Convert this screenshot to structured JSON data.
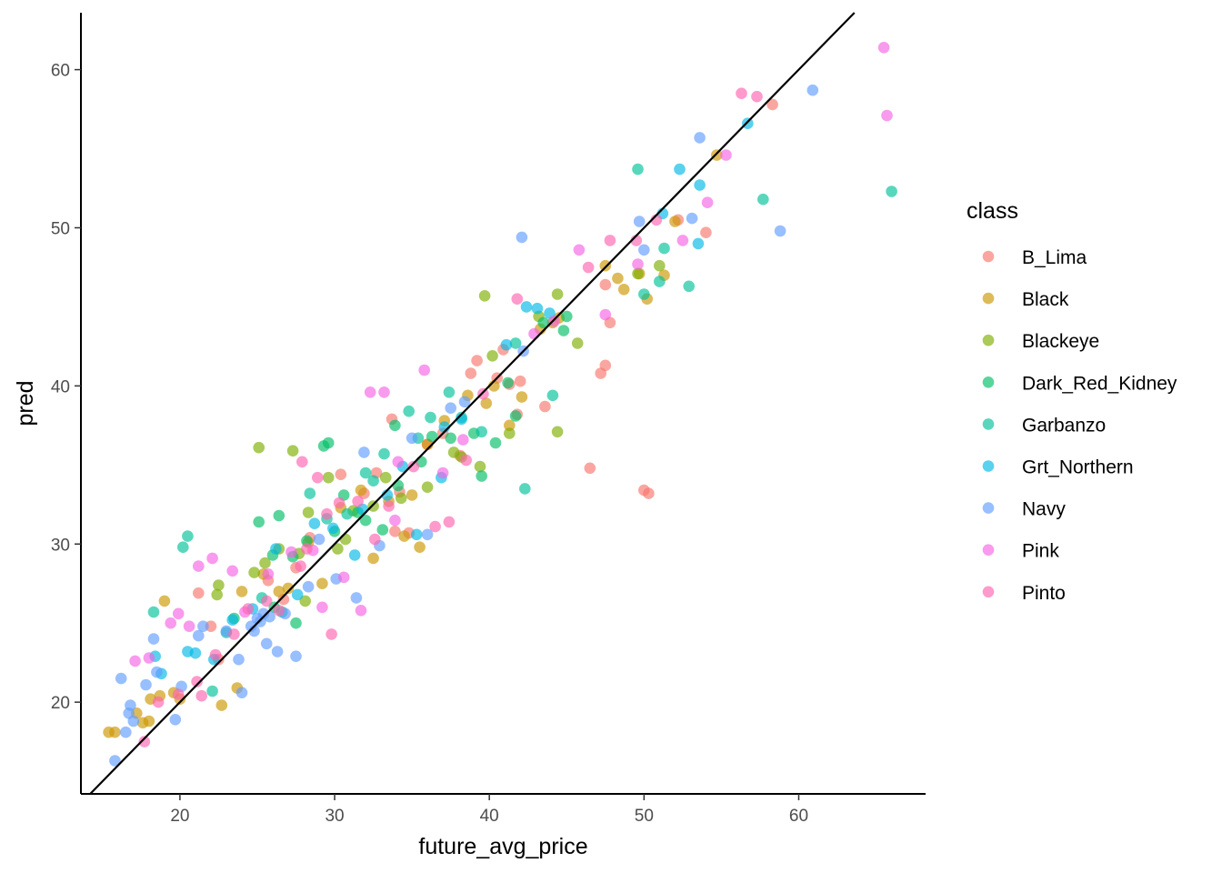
{
  "chart_data": {
    "type": "scatter",
    "title": "",
    "xlabel": "future_avg_price",
    "ylabel": "pred",
    "xlim": [
      13.6,
      68.2
    ],
    "ylim": [
      14.2,
      63.6
    ],
    "x_ticks": [
      "20",
      "30",
      "40",
      "50",
      "60"
    ],
    "y_ticks": [
      "20",
      "30",
      "40",
      "50",
      "60"
    ],
    "grid": false,
    "legend_title": "class",
    "legend_position": "right",
    "reference_line": {
      "label": "",
      "slope": 1,
      "intercept": 0
    },
    "point_opacity": 0.65,
    "series": [
      {
        "name": "B_Lima",
        "color": "#F8766D",
        "points": [
          [
            58.3,
            57.8
          ],
          [
            54.0,
            49.7
          ],
          [
            52.2,
            50.5
          ],
          [
            47.8,
            44.0
          ],
          [
            47.5,
            46.4
          ],
          [
            47.5,
            41.3
          ],
          [
            47.2,
            40.8
          ],
          [
            46.5,
            34.8
          ],
          [
            50.0,
            33.4
          ],
          [
            50.3,
            33.2
          ],
          [
            43.6,
            38.7
          ],
          [
            42.0,
            40.3
          ],
          [
            41.3,
            40.1
          ],
          [
            40.9,
            42.3
          ],
          [
            40.5,
            40.5
          ],
          [
            39.2,
            41.6
          ],
          [
            38.8,
            40.8
          ],
          [
            37.0,
            37.0
          ],
          [
            36.0,
            36.3
          ],
          [
            34.2,
            33.3
          ],
          [
            33.7,
            37.9
          ],
          [
            32.7,
            34.5
          ],
          [
            31.9,
            33.2
          ],
          [
            30.4,
            34.4
          ],
          [
            28.4,
            30.4
          ],
          [
            27.5,
            28.5
          ],
          [
            26.7,
            26.5
          ],
          [
            25.7,
            27.7
          ],
          [
            22.5,
            22.7
          ],
          [
            21.2,
            26.9
          ],
          [
            22.0,
            24.8
          ],
          [
            34.8,
            30.7
          ],
          [
            33.9,
            30.8
          ],
          [
            38.1,
            35.6
          ],
          [
            41.8,
            38.2
          ]
        ]
      },
      {
        "name": "Black",
        "color": "#CD9600",
        "points": [
          [
            15.4,
            18.1
          ],
          [
            15.8,
            18.1
          ],
          [
            17.2,
            19.3
          ],
          [
            17.6,
            18.7
          ],
          [
            18.0,
            18.8
          ],
          [
            18.1,
            20.2
          ],
          [
            18.7,
            20.4
          ],
          [
            19.0,
            26.4
          ],
          [
            19.6,
            20.6
          ],
          [
            20.0,
            20.2
          ],
          [
            22.7,
            19.8
          ],
          [
            23.7,
            20.9
          ],
          [
            24.0,
            27.0
          ],
          [
            25.4,
            28.1
          ],
          [
            26.4,
            27.0
          ],
          [
            27.0,
            27.2
          ],
          [
            28.3,
            30.1
          ],
          [
            29.2,
            27.5
          ],
          [
            30.4,
            32.3
          ],
          [
            31.7,
            33.4
          ],
          [
            32.5,
            29.1
          ],
          [
            33.5,
            32.7
          ],
          [
            34.5,
            30.5
          ],
          [
            35.0,
            33.1
          ],
          [
            35.5,
            29.8
          ],
          [
            36.0,
            36.3
          ],
          [
            37.1,
            37.8
          ],
          [
            38.6,
            39.4
          ],
          [
            39.8,
            38.9
          ],
          [
            40.3,
            40.0
          ],
          [
            41.3,
            37.5
          ],
          [
            42.1,
            39.3
          ],
          [
            43.3,
            43.6
          ],
          [
            44.1,
            44.0
          ],
          [
            47.5,
            47.6
          ],
          [
            48.7,
            46.1
          ],
          [
            49.7,
            47.1
          ],
          [
            50.2,
            45.5
          ],
          [
            51.3,
            47.0
          ],
          [
            52.0,
            50.4
          ],
          [
            54.7,
            54.6
          ],
          [
            48.3,
            46.8
          ],
          [
            44.5,
            44.3
          ]
        ]
      },
      {
        "name": "Blackeye",
        "color": "#7CAE00",
        "points": [
          [
            22.4,
            26.8
          ],
          [
            22.5,
            27.4
          ],
          [
            24.8,
            28.2
          ],
          [
            25.1,
            36.1
          ],
          [
            25.5,
            28.8
          ],
          [
            26.4,
            29.7
          ],
          [
            27.3,
            35.9
          ],
          [
            28.1,
            26.4
          ],
          [
            28.3,
            32.0
          ],
          [
            29.6,
            34.2
          ],
          [
            30.2,
            29.7
          ],
          [
            30.7,
            30.3
          ],
          [
            31.2,
            32.1
          ],
          [
            32.5,
            32.4
          ],
          [
            33.3,
            34.2
          ],
          [
            34.3,
            32.9
          ],
          [
            36.0,
            33.6
          ],
          [
            38.2,
            35.5
          ],
          [
            39.4,
            34.9
          ],
          [
            39.7,
            45.7
          ],
          [
            41.3,
            37.0
          ],
          [
            43.2,
            44.4
          ],
          [
            44.4,
            45.8
          ],
          [
            44.4,
            37.1
          ],
          [
            45.7,
            42.7
          ],
          [
            49.6,
            47.1
          ],
          [
            51.0,
            47.6
          ],
          [
            40.2,
            41.9
          ],
          [
            37.7,
            35.8
          ],
          [
            27.7,
            29.4
          ]
        ]
      },
      {
        "name": "Dark_Red_Kidney",
        "color": "#00BE67",
        "points": [
          [
            25.1,
            31.4
          ],
          [
            26.0,
            29.3
          ],
          [
            26.4,
            31.8
          ],
          [
            27.3,
            29.2
          ],
          [
            28.2,
            30.2
          ],
          [
            29.3,
            36.2
          ],
          [
            29.6,
            36.4
          ],
          [
            30.6,
            33.1
          ],
          [
            31.5,
            32.0
          ],
          [
            33.1,
            30.9
          ],
          [
            33.9,
            37.5
          ],
          [
            34.1,
            33.7
          ],
          [
            35.6,
            35.2
          ],
          [
            37.5,
            36.7
          ],
          [
            39.0,
            37.0
          ],
          [
            39.5,
            34.3
          ],
          [
            40.4,
            36.4
          ],
          [
            41.2,
            40.2
          ],
          [
            41.7,
            38.1
          ],
          [
            44.8,
            43.5
          ],
          [
            45.0,
            44.4
          ],
          [
            43.5,
            44.0
          ],
          [
            36.3,
            36.8
          ],
          [
            32.0,
            31.5
          ],
          [
            30.0,
            30.8
          ],
          [
            27.5,
            25.0
          ],
          [
            26.1,
            26.0
          ],
          [
            23.5,
            25.3
          ]
        ]
      },
      {
        "name": "Garbanzo",
        "color": "#00C19A",
        "points": [
          [
            18.3,
            25.7
          ],
          [
            20.2,
            29.8
          ],
          [
            20.5,
            30.5
          ],
          [
            22.1,
            20.7
          ],
          [
            23.0,
            24.4
          ],
          [
            25.3,
            26.6
          ],
          [
            26.6,
            25.7
          ],
          [
            28.4,
            33.2
          ],
          [
            29.5,
            31.6
          ],
          [
            30.8,
            31.9
          ],
          [
            32.0,
            34.5
          ],
          [
            32.5,
            34.0
          ],
          [
            33.2,
            35.7
          ],
          [
            34.8,
            38.4
          ],
          [
            35.4,
            36.7
          ],
          [
            36.2,
            38.0
          ],
          [
            37.4,
            39.6
          ],
          [
            38.2,
            38.0
          ],
          [
            39.5,
            37.1
          ],
          [
            41.7,
            42.7
          ],
          [
            42.3,
            33.5
          ],
          [
            44.1,
            39.4
          ],
          [
            49.6,
            53.7
          ],
          [
            51.0,
            46.6
          ],
          [
            51.3,
            48.7
          ],
          [
            52.9,
            46.3
          ],
          [
            57.7,
            51.8
          ],
          [
            66.0,
            52.3
          ],
          [
            50.0,
            45.8
          ]
        ]
      },
      {
        "name": "Grt_Northern",
        "color": "#00B8E7",
        "points": [
          [
            18.4,
            22.9
          ],
          [
            18.8,
            21.8
          ],
          [
            20.5,
            23.2
          ],
          [
            21.0,
            23.1
          ],
          [
            22.2,
            22.7
          ],
          [
            23.4,
            25.2
          ],
          [
            24.7,
            25.9
          ],
          [
            26.2,
            29.7
          ],
          [
            28.7,
            31.3
          ],
          [
            29.9,
            31.0
          ],
          [
            31.8,
            32.2
          ],
          [
            33.4,
            33.1
          ],
          [
            34.4,
            34.9
          ],
          [
            35.3,
            30.6
          ],
          [
            36.9,
            34.2
          ],
          [
            37.1,
            37.4
          ],
          [
            38.2,
            37.9
          ],
          [
            41.1,
            42.6
          ],
          [
            42.4,
            45.0
          ],
          [
            43.1,
            44.9
          ],
          [
            43.9,
            44.6
          ],
          [
            52.3,
            53.7
          ],
          [
            53.6,
            52.7
          ],
          [
            53.5,
            49.0
          ],
          [
            56.7,
            56.6
          ],
          [
            51.2,
            50.9
          ],
          [
            31.3,
            29.3
          ],
          [
            27.6,
            26.8
          ]
        ]
      },
      {
        "name": "Navy",
        "color": "#619CFF",
        "points": [
          [
            15.8,
            16.3
          ],
          [
            16.2,
            21.5
          ],
          [
            16.5,
            18.1
          ],
          [
            16.7,
            19.3
          ],
          [
            16.8,
            19.8
          ],
          [
            17.0,
            18.8
          ],
          [
            17.8,
            21.1
          ],
          [
            18.3,
            24.0
          ],
          [
            18.5,
            21.9
          ],
          [
            19.7,
            18.9
          ],
          [
            20.1,
            21.0
          ],
          [
            21.2,
            24.2
          ],
          [
            21.5,
            24.8
          ],
          [
            23.0,
            24.5
          ],
          [
            23.8,
            22.7
          ],
          [
            24.0,
            20.6
          ],
          [
            24.8,
            24.5
          ],
          [
            25.2,
            25.1
          ],
          [
            25.6,
            23.7
          ],
          [
            26.3,
            23.2
          ],
          [
            26.8,
            25.6
          ],
          [
            27.5,
            22.9
          ],
          [
            28.3,
            27.3
          ],
          [
            29.0,
            30.3
          ],
          [
            30.1,
            27.8
          ],
          [
            31.4,
            26.6
          ],
          [
            31.9,
            35.8
          ],
          [
            32.9,
            29.9
          ],
          [
            35.0,
            36.7
          ],
          [
            36.0,
            30.6
          ],
          [
            37.5,
            38.6
          ],
          [
            38.4,
            39.0
          ],
          [
            42.2,
            42.2
          ],
          [
            42.1,
            49.4
          ],
          [
            49.7,
            50.4
          ],
          [
            50.0,
            48.6
          ],
          [
            53.1,
            50.6
          ],
          [
            53.6,
            55.7
          ],
          [
            58.8,
            49.8
          ],
          [
            60.9,
            58.7
          ],
          [
            25.0,
            25.3
          ],
          [
            25.4,
            25.6
          ],
          [
            24.6,
            24.8
          ],
          [
            25.8,
            25.4
          ]
        ]
      },
      {
        "name": "Pink",
        "color": "#F564E3",
        "points": [
          [
            17.1,
            22.6
          ],
          [
            18.0,
            22.8
          ],
          [
            19.4,
            25.0
          ],
          [
            19.9,
            25.6
          ],
          [
            20.6,
            24.8
          ],
          [
            21.2,
            28.6
          ],
          [
            22.1,
            29.1
          ],
          [
            23.4,
            28.3
          ],
          [
            24.2,
            25.7
          ],
          [
            25.7,
            28.1
          ],
          [
            27.2,
            29.5
          ],
          [
            28.6,
            29.6
          ],
          [
            29.2,
            26.0
          ],
          [
            30.6,
            27.9
          ],
          [
            32.3,
            39.6
          ],
          [
            33.2,
            39.6
          ],
          [
            34.1,
            35.2
          ],
          [
            35.8,
            41.0
          ],
          [
            37.0,
            34.5
          ],
          [
            38.3,
            36.6
          ],
          [
            42.9,
            43.3
          ],
          [
            44.2,
            44.1
          ],
          [
            45.8,
            48.6
          ],
          [
            47.5,
            44.5
          ],
          [
            49.6,
            47.7
          ],
          [
            52.5,
            49.2
          ],
          [
            54.1,
            51.6
          ],
          [
            55.3,
            54.6
          ],
          [
            65.5,
            61.4
          ],
          [
            65.7,
            57.1
          ],
          [
            31.7,
            25.8
          ],
          [
            33.9,
            31.5
          ]
        ]
      },
      {
        "name": "Pinto",
        "color": "#FF64B0",
        "points": [
          [
            17.7,
            17.5
          ],
          [
            18.6,
            20.0
          ],
          [
            19.9,
            20.5
          ],
          [
            21.1,
            21.3
          ],
          [
            21.4,
            20.4
          ],
          [
            22.3,
            23.0
          ],
          [
            23.5,
            24.3
          ],
          [
            24.4,
            25.9
          ],
          [
            25.6,
            26.4
          ],
          [
            26.4,
            25.8
          ],
          [
            27.8,
            28.6
          ],
          [
            28.2,
            29.7
          ],
          [
            29.5,
            31.9
          ],
          [
            30.3,
            32.6
          ],
          [
            31.5,
            32.7
          ],
          [
            32.6,
            30.3
          ],
          [
            33.5,
            32.4
          ],
          [
            35.1,
            34.9
          ],
          [
            36.5,
            31.1
          ],
          [
            37.4,
            31.4
          ],
          [
            38.5,
            35.3
          ],
          [
            39.6,
            39.5
          ],
          [
            41.8,
            45.5
          ],
          [
            46.4,
            47.5
          ],
          [
            47.8,
            49.2
          ],
          [
            49.5,
            49.2
          ],
          [
            50.8,
            50.5
          ],
          [
            56.3,
            58.5
          ],
          [
            57.3,
            58.3
          ],
          [
            28.9,
            34.2
          ],
          [
            27.9,
            35.2
          ],
          [
            29.8,
            24.3
          ]
        ]
      }
    ]
  }
}
